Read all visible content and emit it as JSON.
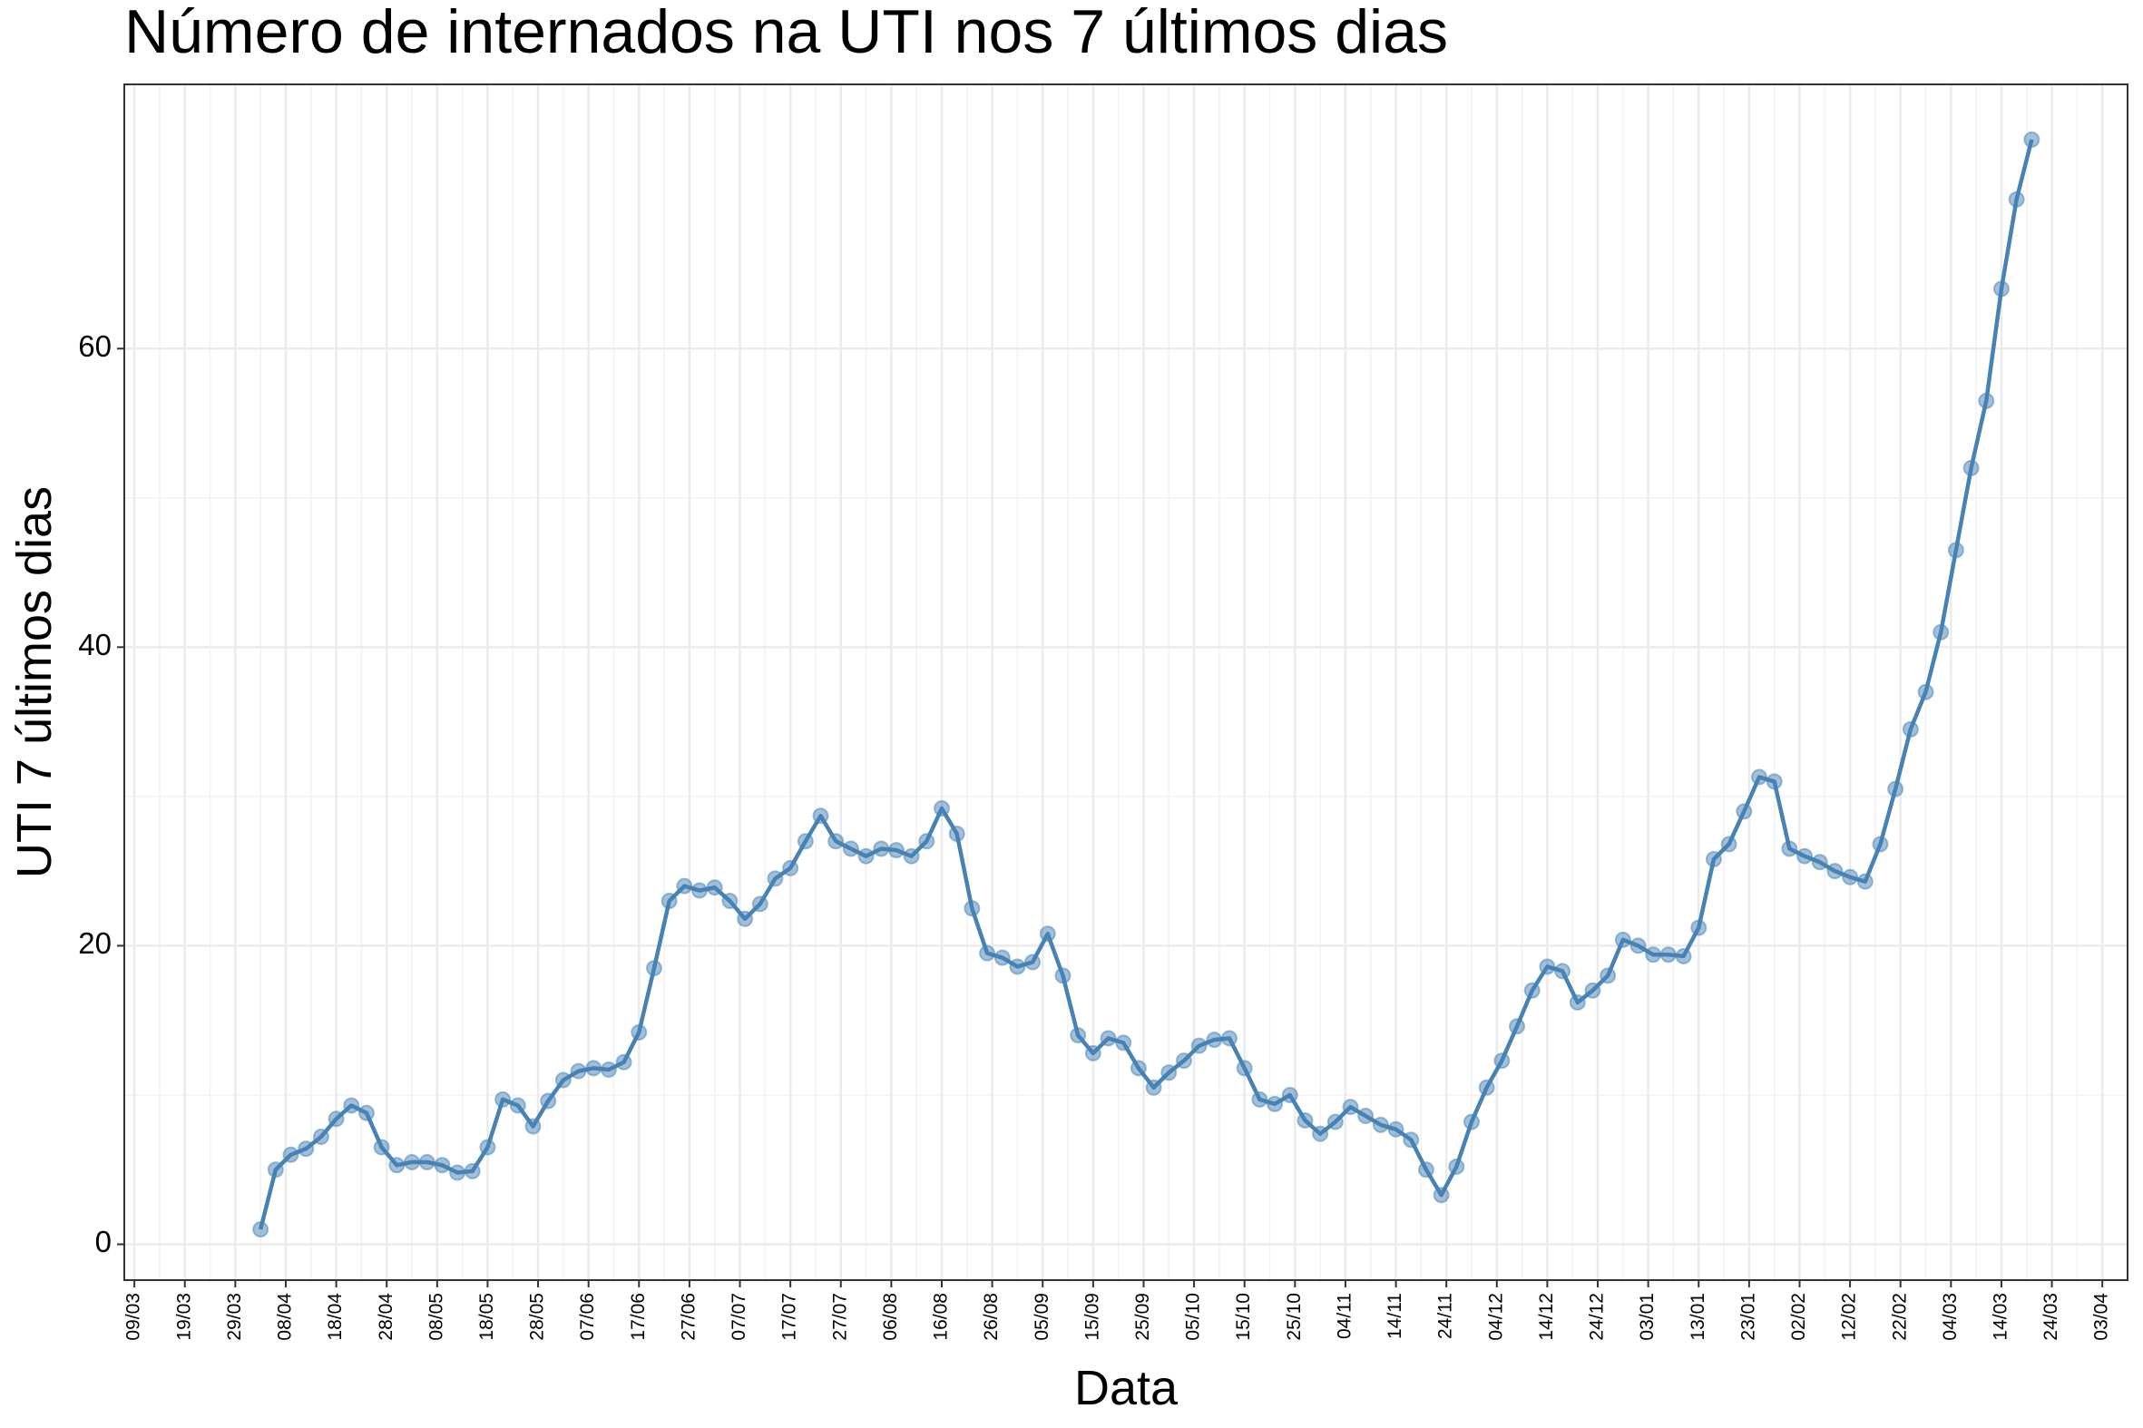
{
  "chart_data": {
    "type": "line",
    "title": "Número de internados na UTI nos 7 últimos dias",
    "xlabel": "Data",
    "ylabel": "UTI 7 últimos dias",
    "color": "#4682b4",
    "grid": true,
    "x": [
      "03/04",
      "06/04",
      "09/04",
      "12/04",
      "15/04",
      "18/04",
      "21/04",
      "24/04",
      "27/04",
      "30/04",
      "03/05",
      "06/05",
      "09/05",
      "12/05",
      "15/05",
      "18/05",
      "21/05",
      "24/05",
      "27/05",
      "30/05",
      "02/06",
      "05/06",
      "08/06",
      "11/06",
      "14/06",
      "17/06",
      "20/06",
      "23/06",
      "26/06",
      "29/06",
      "02/07",
      "05/07",
      "08/07",
      "11/07",
      "14/07",
      "17/07",
      "20/07",
      "23/07",
      "26/07",
      "29/07",
      "01/08",
      "04/08",
      "07/08",
      "10/08",
      "13/08",
      "16/08",
      "19/08",
      "22/08",
      "25/08",
      "28/08",
      "31/08",
      "03/09",
      "06/09",
      "09/09",
      "12/09",
      "15/09",
      "18/09",
      "21/09",
      "24/09",
      "27/09",
      "30/09",
      "03/10",
      "06/10",
      "09/10",
      "12/10",
      "15/10",
      "18/10",
      "21/10",
      "24/10",
      "27/10",
      "30/10",
      "02/11",
      "05/11",
      "08/11",
      "11/11",
      "14/11",
      "17/11",
      "20/11",
      "23/11",
      "26/11",
      "29/11",
      "02/12",
      "05/12",
      "08/12",
      "11/12",
      "14/12",
      "17/12",
      "20/12",
      "23/12",
      "26/12",
      "29/12",
      "01/01",
      "04/01",
      "07/01",
      "10/01",
      "13/01",
      "16/01",
      "19/01",
      "22/01",
      "25/01",
      "28/01",
      "31/01",
      "03/02",
      "06/02",
      "09/02",
      "12/02",
      "15/02",
      "18/02",
      "21/02",
      "24/02",
      "27/02",
      "02/03",
      "05/03",
      "08/03",
      "11/03",
      "14/03",
      "17/03",
      "20/03"
    ],
    "values": [
      1.0,
      5.0,
      6.0,
      6.4,
      7.2,
      8.4,
      9.3,
      8.8,
      6.5,
      5.3,
      5.5,
      5.5,
      5.3,
      4.8,
      4.9,
      6.5,
      9.7,
      9.3,
      7.9,
      9.6,
      11.0,
      11.6,
      11.8,
      11.7,
      12.2,
      14.2,
      18.5,
      23.0,
      24.0,
      23.7,
      23.9,
      23.0,
      21.8,
      22.8,
      24.5,
      25.2,
      27.0,
      28.7,
      27.0,
      26.5,
      26.0,
      26.5,
      26.4,
      26.0,
      27.0,
      29.2,
      27.5,
      22.5,
      19.5,
      19.2,
      18.6,
      18.9,
      20.8,
      18.0,
      14.0,
      12.8,
      13.8,
      13.5,
      11.8,
      10.5,
      11.5,
      12.3,
      13.3,
      13.7,
      13.8,
      11.8,
      9.7,
      9.4,
      10.0,
      8.3,
      7.4,
      8.2,
      9.2,
      8.6,
      8.0,
      7.7,
      7.0,
      5.0,
      3.3,
      5.2,
      8.2,
      10.5,
      12.3,
      14.6,
      17.0,
      18.6,
      18.3,
      16.2,
      17.0,
      18.0,
      20.4,
      20.0,
      19.4,
      19.4,
      19.3,
      21.2,
      25.8,
      26.8,
      29.0,
      31.3,
      31.0,
      26.5,
      26.0,
      25.6,
      25.0,
      24.6,
      24.3,
      26.8,
      30.5,
      34.5,
      37.0,
      41.0,
      46.5,
      52.0,
      56.5,
      64.0,
      70.0,
      74.0
    ],
    "xlim": [
      "07/03",
      "08/04"
    ],
    "xticks": [
      "09/03",
      "19/03",
      "29/03",
      "08/04",
      "18/04",
      "28/04",
      "08/05",
      "18/05",
      "28/05",
      "07/06",
      "17/06",
      "27/06",
      "07/07",
      "17/07",
      "27/07",
      "06/08",
      "16/08",
      "26/08",
      "05/09",
      "15/09",
      "25/09",
      "05/10",
      "15/10",
      "25/10",
      "04/11",
      "14/11",
      "24/11",
      "04/12",
      "14/12",
      "24/12",
      "03/01",
      "13/01",
      "23/01",
      "02/02",
      "12/02",
      "22/02",
      "04/03",
      "14/03",
      "24/03",
      "03/04"
    ],
    "ylim": [
      -2.4,
      77.7
    ],
    "yticks": [
      0,
      20,
      40,
      60
    ]
  }
}
